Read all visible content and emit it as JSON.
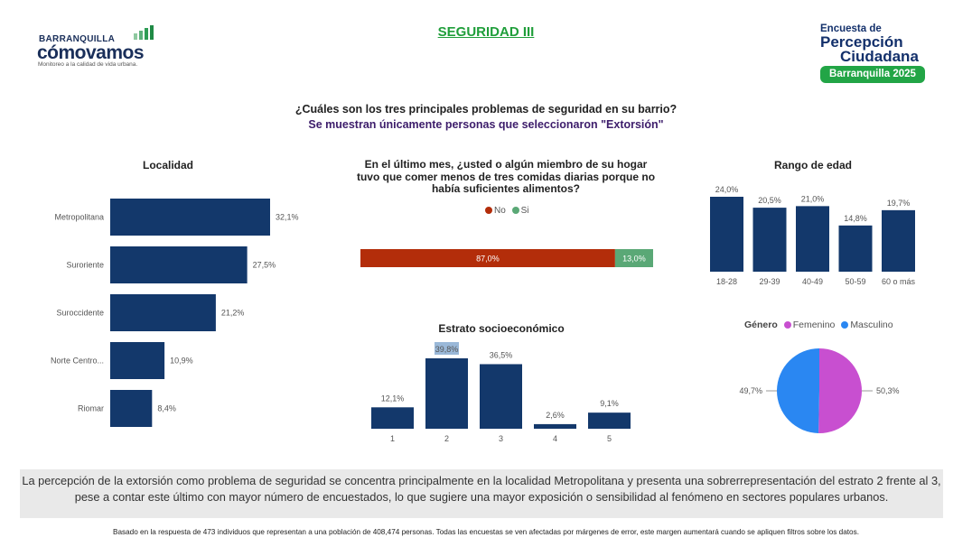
{
  "header": {
    "logo_top": "BARRANQUILLA",
    "logo_main": "cómovamos",
    "logo_sub": "Monitoreo a la calidad de vida urbana.",
    "page_title": "SEGURIDAD III",
    "brand_line1": "Encuesta de",
    "brand_line2": "Percepción",
    "brand_line3": "Ciudadana",
    "brand_badge": "Barranquilla 2025"
  },
  "question": {
    "main": "¿Cuáles son los tres principales problemas de seguridad en su barrio?",
    "filter": "Se muestran únicamente personas que seleccionaron \"Extorsión\""
  },
  "colors": {
    "navy": "#13386b",
    "no": "#b32d0a",
    "si": "#5aa876",
    "femenino": "#c84fd0",
    "masculino": "#2a87f2",
    "highlight": "#9ab8d8",
    "green": "#1f9e3a"
  },
  "chart_data": [
    {
      "id": "localidad",
      "type": "bar",
      "orientation": "horizontal",
      "title": "Localidad",
      "categories": [
        "Metropolitana",
        "Suroriente",
        "Suroccidente",
        "Norte Centro...",
        "Riomar"
      ],
      "values": [
        32.1,
        27.5,
        21.2,
        10.9,
        8.4
      ],
      "labels": [
        "32,1%",
        "27,5%",
        "21,2%",
        "10,9%",
        "8,4%"
      ]
    },
    {
      "id": "hambre",
      "type": "bar",
      "orientation": "horizontal-stacked-100",
      "title": "En el último mes, ¿usted o algún miembro de su hogar tuvo que comer menos de tres comidas diarias porque no había suficientes alimentos?",
      "title_lines": [
        "En el último mes, ¿usted o algún miembro de su hogar",
        "tuvo que comer menos de tres comidas diarias porque no",
        "había suficientes alimentos?"
      ],
      "series": [
        {
          "name": "No",
          "values": [
            87.0
          ],
          "label": "87,0%"
        },
        {
          "name": "Si",
          "values": [
            13.0
          ],
          "label": "13,0%"
        }
      ],
      "legend_position": "top"
    },
    {
      "id": "edad",
      "type": "bar",
      "title": "Rango de edad",
      "categories": [
        "18-28",
        "29-39",
        "40-49",
        "50-59",
        "60 o más"
      ],
      "values": [
        24.0,
        20.5,
        21.0,
        14.8,
        19.7
      ],
      "labels": [
        "24,0%",
        "20,5%",
        "21,0%",
        "14,8%",
        "19,7%"
      ]
    },
    {
      "id": "estrato",
      "type": "bar",
      "title": "Estrato socioeconómico",
      "categories": [
        "1",
        "2",
        "3",
        "4",
        "5"
      ],
      "values": [
        12.1,
        39.8,
        36.5,
        2.6,
        9.1
      ],
      "labels": [
        "12,1%",
        "39,8%",
        "36,5%",
        "2,6%",
        "9,1%"
      ],
      "highlighted_label": "39,8%"
    },
    {
      "id": "genero",
      "type": "pie",
      "legend_title": "Género",
      "categories": [
        "Femenino",
        "Masculino"
      ],
      "values": [
        50.3,
        49.7
      ],
      "labels": [
        "50,3%",
        "49,7%"
      ],
      "legend_position": "top"
    }
  ],
  "footer": {
    "summary": "La percepción de la extorsión como problema de seguridad se concentra principalmente en la localidad Metropolitana y presenta una sobrerrepresentación del estrato 2 frente al 3, pese a contar este último con mayor número de encuestados, lo que sugiere una mayor exposición o sensibilidad al fenómeno en sectores populares urbanos.",
    "note": "Basado en la respuesta de 473 individuos que representan a una población de 408,474 personas. Todas las encuestas se ven afectadas por márgenes de error, este margen aumentará cuando se apliquen filtros sobre los datos."
  }
}
